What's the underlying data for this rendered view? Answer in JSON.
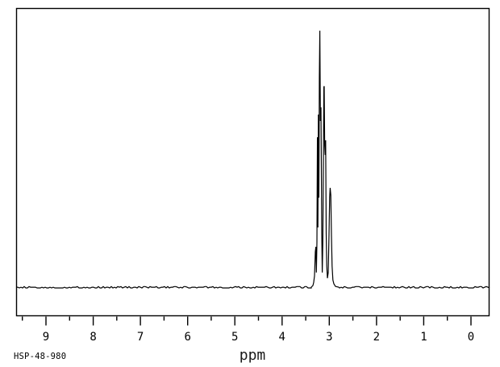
{
  "window": {
    "background_color": "#ffffff",
    "foreground_color": "#000000"
  },
  "chart_data": {
    "type": "line",
    "chart_kind": "NMR spectrum",
    "title": "",
    "xlabel": "ppm",
    "ylabel": "",
    "annotation": "HSP-48-980",
    "grid": false,
    "legend": false,
    "line_color": "#000000",
    "x_axis": {
      "xlim": [
        9.632,
        -0.393
      ],
      "inverted": true,
      "major_ticks": [
        9,
        8,
        7,
        6,
        5,
        4,
        3,
        2,
        1,
        0
      ],
      "major_tick_labels": [
        "9",
        "8",
        "7",
        "6",
        "5",
        "4",
        "3",
        "2",
        "1",
        "0"
      ],
      "minor_ticks": [
        9.5,
        8.5,
        7.5,
        6.5,
        5.5,
        4.5,
        3.5,
        2.5,
        1.5,
        0.5
      ]
    },
    "y_axis": {
      "visible": false,
      "ylim_relative_intensity": [
        -0.11,
        1.09
      ]
    },
    "peaks": [
      {
        "ppm": 3.25,
        "rel_intensity": 0.59
      },
      {
        "ppm": 3.2,
        "rel_intensity": 1.0
      },
      {
        "ppm": 3.11,
        "rel_intensity": 0.78
      },
      {
        "ppm": 3.08,
        "rel_intensity": 0.57
      },
      {
        "ppm": 2.98,
        "rel_intensity": 0.39
      }
    ],
    "trace": [
      [
        3.381,
        0.003
      ],
      [
        3.347,
        0.009
      ],
      [
        3.33,
        0.022
      ],
      [
        3.313,
        0.047
      ],
      [
        3.296,
        0.141
      ],
      [
        3.284,
        0.16
      ],
      [
        3.274,
        0.06
      ],
      [
        3.262,
        0.179
      ],
      [
        3.251,
        0.586
      ],
      [
        3.241,
        0.235
      ],
      [
        3.231,
        0.674
      ],
      [
        3.221,
        0.351
      ],
      [
        3.21,
        0.821
      ],
      [
        3.2,
        1.0
      ],
      [
        3.188,
        0.649
      ],
      [
        3.176,
        0.702
      ],
      [
        3.159,
        0.21
      ],
      [
        3.149,
        0.06
      ],
      [
        3.137,
        0.179
      ],
      [
        3.125,
        0.492
      ],
      [
        3.115,
        0.781
      ],
      [
        3.108,
        0.784
      ],
      [
        3.098,
        0.555
      ],
      [
        3.088,
        0.517
      ],
      [
        3.077,
        0.574
      ],
      [
        3.065,
        0.21
      ],
      [
        3.053,
        0.085
      ],
      [
        3.04,
        0.038
      ],
      [
        3.023,
        0.06
      ],
      [
        3.006,
        0.21
      ],
      [
        2.992,
        0.354
      ],
      [
        2.982,
        0.389
      ],
      [
        2.968,
        0.361
      ],
      [
        2.954,
        0.204
      ],
      [
        2.941,
        0.085
      ],
      [
        2.924,
        0.031
      ],
      [
        2.903,
        0.016
      ],
      [
        2.869,
        0.006
      ],
      [
        2.801,
        0.003
      ]
    ]
  }
}
